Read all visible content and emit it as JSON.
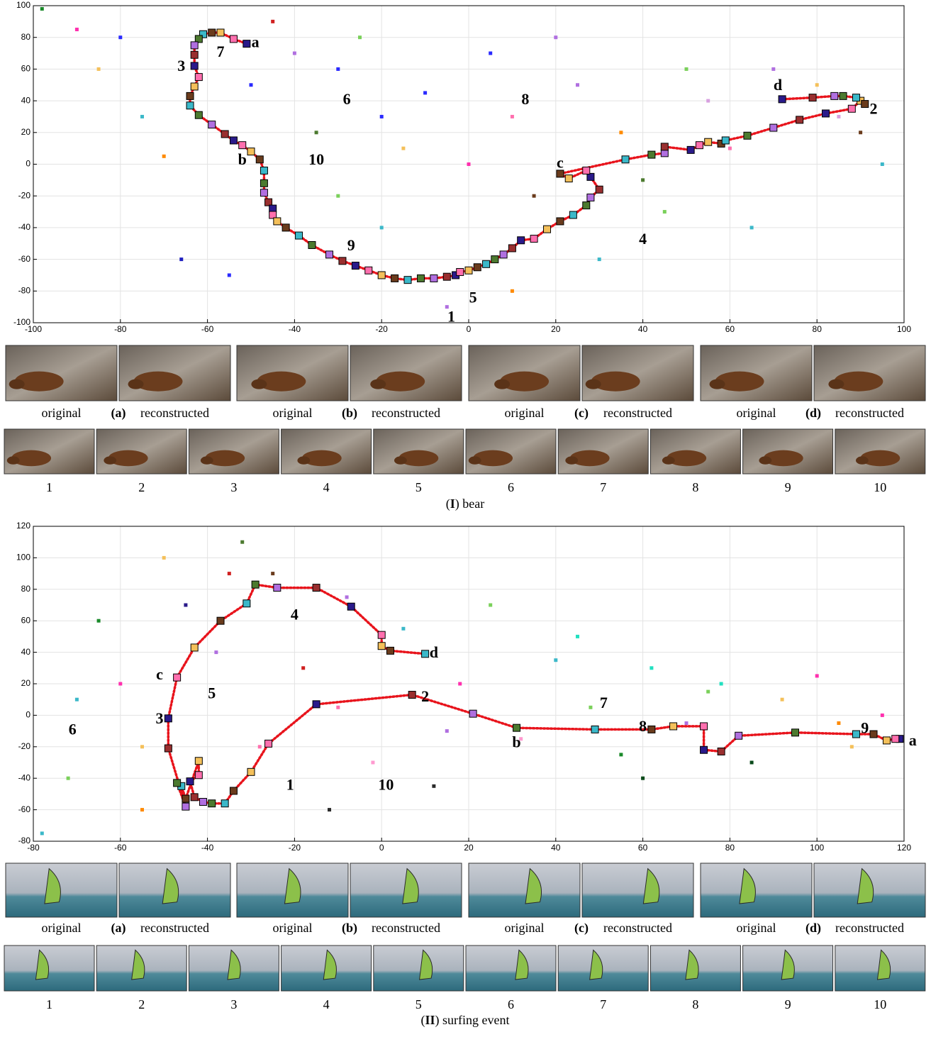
{
  "chart_data": [
    {
      "type": "scatter",
      "xlim": [
        -100,
        100
      ],
      "ylim": [
        -100,
        100
      ],
      "xticks": [
        -100,
        -80,
        -60,
        -40,
        -20,
        0,
        20,
        40,
        60,
        80,
        100
      ],
      "yticks": [
        -100,
        -80,
        -60,
        -40,
        -20,
        0,
        20,
        40,
        60,
        80,
        100
      ],
      "grid": true,
      "line_color": "#e8141c",
      "marker_colors": [
        "#2a1a8a",
        "#ff6fae",
        "#f4c05a",
        "#6a3b1c",
        "#3bb8c9",
        "#4c7a2f",
        "#b06fe0",
        "#9a2f2f"
      ],
      "points": {
        "x": [
          -98,
          -90,
          -85,
          -80,
          -75,
          -70,
          -66,
          -50,
          -45,
          -40,
          -35,
          -30,
          -25,
          -20,
          -15,
          -10,
          -5,
          5,
          10,
          15,
          25,
          30,
          35,
          45,
          55,
          60,
          70,
          80,
          90,
          95,
          -55,
          -30,
          0,
          20,
          40,
          65,
          85,
          -20,
          10,
          50
        ],
        "y": [
          98,
          85,
          60,
          80,
          30,
          5,
          -60,
          50,
          90,
          70,
          20,
          60,
          80,
          -40,
          10,
          45,
          -90,
          70,
          30,
          -20,
          50,
          -60,
          20,
          -30,
          40,
          10,
          60,
          50,
          20,
          0,
          -70,
          -20,
          0,
          80,
          -10,
          -40,
          30,
          30,
          -80,
          60
        ],
        "colors": [
          "#1a8a2a",
          "#ff2fae",
          "#f4c05a",
          "#2a2aff",
          "#3bb8c9",
          "#ff8a00",
          "#2020c0",
          "#2a2aff",
          "#d02020",
          "#b06fe0",
          "#4c7a2f",
          "#2a2aff",
          "#7ad05a",
          "#3bb8c9",
          "#f4c05a",
          "#2a2aff",
          "#b06fe0",
          "#2a2aff",
          "#ff6fae",
          "#6a3b1c",
          "#b06fe0",
          "#3bb8c9",
          "#ff8a00",
          "#7ad05a",
          "#d8a0e0",
          "#ff6fae",
          "#b06fe0",
          "#f4c05a",
          "#6a3b1c",
          "#3bb8c9",
          "#2a2aff",
          "#7ad05a",
          "#ff2fae",
          "#b06fe0",
          "#4c7a2f",
          "#3bb8c9",
          "#d8a0e0",
          "#2a2aff",
          "#ff8a00",
          "#7ad05a"
        ]
      },
      "series": [
        {
          "x": [
            -51,
            -54,
            -57,
            -59,
            -61,
            -62,
            -63,
            -63,
            -63,
            -62,
            -63,
            -64,
            -64,
            -62,
            -59,
            -56,
            -54,
            -52,
            -50,
            -48,
            -47,
            -47,
            -47,
            -46,
            -45,
            -45,
            -44,
            -42,
            -39,
            -36,
            -32,
            -29,
            -26,
            -23,
            -20,
            -17,
            -14,
            -11,
            -8,
            -5,
            -3,
            -2,
            0,
            2,
            4,
            6,
            8,
            10,
            12,
            15,
            18,
            21,
            24,
            27,
            28,
            30,
            28,
            27,
            23,
            21,
            36,
            42,
            45,
            45,
            51,
            53,
            55,
            58,
            59,
            64,
            70,
            76,
            82,
            88,
            90,
            91,
            89,
            86,
            84,
            79,
            72
          ],
          "y": [
            76,
            79,
            83,
            83,
            82,
            79,
            75,
            69,
            62,
            55,
            49,
            43,
            37,
            31,
            25,
            19,
            15,
            12,
            8,
            3,
            -4,
            -12,
            -18,
            -24,
            -28,
            -32,
            -36,
            -40,
            -45,
            -51,
            -57,
            -61,
            -64,
            -67,
            -70,
            -72,
            -73,
            -72,
            -72,
            -71,
            -70,
            -68,
            -67,
            -65,
            -63,
            -60,
            -57,
            -53,
            -48,
            -47,
            -41,
            -36,
            -32,
            -26,
            -21,
            -16,
            -8,
            -4,
            -9,
            -6,
            3,
            6,
            7,
            11,
            9,
            12,
            14,
            13,
            15,
            18,
            23,
            28,
            32,
            35,
            40,
            38,
            42,
            43,
            43,
            42,
            41
          ]
        }
      ],
      "annotations": [
        {
          "text": "a",
          "x": -49,
          "y": 76
        },
        {
          "text": "7",
          "x": -57,
          "y": 70
        },
        {
          "text": "3",
          "x": -66,
          "y": 61
        },
        {
          "text": "b",
          "x": -52,
          "y": 2
        },
        {
          "text": "10",
          "x": -35,
          "y": 2
        },
        {
          "text": "6",
          "x": -28,
          "y": 40
        },
        {
          "text": "8",
          "x": 13,
          "y": 40
        },
        {
          "text": "c",
          "x": 21,
          "y": 0
        },
        {
          "text": "d",
          "x": 71,
          "y": 49
        },
        {
          "text": "2",
          "x": 93,
          "y": 34
        },
        {
          "text": "4",
          "x": 40,
          "y": -48
        },
        {
          "text": "9",
          "x": -27,
          "y": -52
        },
        {
          "text": "5",
          "x": 1,
          "y": -85
        },
        {
          "text": "1",
          "x": -4,
          "y": -97
        }
      ]
    },
    {
      "type": "scatter",
      "xlim": [
        -80,
        120
      ],
      "ylim": [
        -80,
        120
      ],
      "xticks": [
        -80,
        -60,
        -40,
        -20,
        0,
        20,
        40,
        60,
        80,
        100,
        120
      ],
      "yticks": [
        -80,
        -60,
        -40,
        -20,
        0,
        20,
        40,
        60,
        80,
        100,
        120
      ],
      "grid": true,
      "line_color": "#e8141c",
      "marker_colors": [
        "#2a1a8a",
        "#ff6fae",
        "#f4c05a",
        "#6a3b1c",
        "#3bb8c9",
        "#4c7a2f",
        "#b06fe0",
        "#9a2f2f"
      ],
      "points": {
        "x": [
          -78,
          -72,
          -65,
          -60,
          -55,
          -50,
          -45,
          -38,
          -32,
          -28,
          -25,
          -18,
          -12,
          -8,
          -2,
          5,
          12,
          18,
          25,
          32,
          40,
          48,
          55,
          62,
          70,
          78,
          85,
          92,
          100,
          108,
          115,
          -70,
          -55,
          -35,
          -10,
          15,
          45,
          75,
          105,
          60
        ],
        "y": [
          -75,
          -40,
          60,
          20,
          -60,
          100,
          70,
          40,
          110,
          -20,
          90,
          30,
          -60,
          75,
          -30,
          55,
          -45,
          20,
          70,
          -15,
          35,
          5,
          -25,
          30,
          -5,
          20,
          -30,
          10,
          25,
          -20,
          0,
          10,
          -20,
          90,
          5,
          -10,
          50,
          15,
          -5,
          -40
        ],
        "colors": [
          "#3bb8c9",
          "#7ad05a",
          "#1a8a2a",
          "#ff2fae",
          "#ff8a00",
          "#f4c05a",
          "#2a1a8a",
          "#b06fe0",
          "#4c7a2f",
          "#ff6fae",
          "#6a3b1c",
          "#d02020",
          "#2a2a2a",
          "#b06fe0",
          "#ff9ad0",
          "#3bb8c9",
          "#2a2a2a",
          "#ff2fae",
          "#7ad05a",
          "#ff9ad0",
          "#3bb8c9",
          "#7ad05a",
          "#1a8a2a",
          "#22e0c0",
          "#b06fe0",
          "#22e0c0",
          "#0a4a1a",
          "#f4c05a",
          "#ff2fae",
          "#f4c05a",
          "#ff2fae",
          "#3bb8c9",
          "#f4c05a",
          "#d02020",
          "#ff6fae",
          "#b06fe0",
          "#22e0c0",
          "#7ad05a",
          "#ff8a00",
          "#0a4a1a"
        ]
      },
      "series": [
        {
          "x": [
            119,
            118,
            116,
            113,
            109,
            95,
            82,
            78,
            74,
            74,
            67,
            62,
            49,
            31,
            21,
            7,
            -15,
            -26,
            -30,
            -34,
            -36,
            -39,
            -41,
            -43,
            -44,
            -42,
            -42,
            -45,
            -46,
            -47,
            -45,
            -49,
            -49,
            -47,
            -43,
            -37,
            -31,
            -29,
            -24,
            -15,
            -7,
            0,
            0,
            2,
            10
          ],
          "y": [
            -15,
            -15,
            -16,
            -12,
            -12,
            -11,
            -13,
            -23,
            -22,
            -7,
            -7,
            -9,
            -9,
            -8,
            1,
            13,
            7,
            -18,
            -36,
            -48,
            -56,
            -56,
            -55,
            -52,
            -42,
            -38,
            -29,
            -53,
            -45,
            -43,
            -58,
            -21,
            -2,
            24,
            43,
            60,
            71,
            83,
            81,
            81,
            69,
            51,
            44,
            41,
            39
          ]
        }
      ],
      "annotations": [
        {
          "text": "d",
          "x": 12,
          "y": 39
        },
        {
          "text": "4",
          "x": -20,
          "y": 63
        },
        {
          "text": "c",
          "x": -51,
          "y": 25
        },
        {
          "text": "5",
          "x": -39,
          "y": 13
        },
        {
          "text": "2",
          "x": 10,
          "y": 11
        },
        {
          "text": "7",
          "x": 51,
          "y": 7
        },
        {
          "text": "8",
          "x": 60,
          "y": -8
        },
        {
          "text": "9",
          "x": 111,
          "y": -9
        },
        {
          "text": "a",
          "x": 122,
          "y": -17
        },
        {
          "text": "3",
          "x": -51,
          "y": -3
        },
        {
          "text": "6",
          "x": -71,
          "y": -10
        },
        {
          "text": "b",
          "x": 31,
          "y": -18
        },
        {
          "text": "1",
          "x": -21,
          "y": -45
        },
        {
          "text": "10",
          "x": 1,
          "y": -45
        }
      ]
    }
  ],
  "panels": [
    {
      "pairs": [
        {
          "left": "original",
          "label": "(a)",
          "right": "reconstructed"
        },
        {
          "left": "original",
          "label": "(b)",
          "right": "reconstructed"
        },
        {
          "left": "original",
          "label": "(c)",
          "right": "reconstructed"
        },
        {
          "left": "original",
          "label": "(d)",
          "right": "reconstructed"
        }
      ],
      "frames": [
        "1",
        "2",
        "3",
        "4",
        "5",
        "6",
        "7",
        "8",
        "9",
        "10"
      ],
      "caption": [
        "(",
        "I",
        ") bear"
      ]
    },
    {
      "pairs": [
        {
          "left": "original",
          "label": "(a)",
          "right": "reconstructed"
        },
        {
          "left": "original",
          "label": "(b)",
          "right": "reconstructed"
        },
        {
          "left": "original",
          "label": "(c)",
          "right": "reconstructed"
        },
        {
          "left": "original",
          "label": "(d)",
          "right": "reconstructed"
        }
      ],
      "frames": [
        "1",
        "2",
        "3",
        "4",
        "5",
        "6",
        "7",
        "8",
        "9",
        "10"
      ],
      "caption": [
        "(",
        "II",
        ") surfing event"
      ]
    }
  ]
}
